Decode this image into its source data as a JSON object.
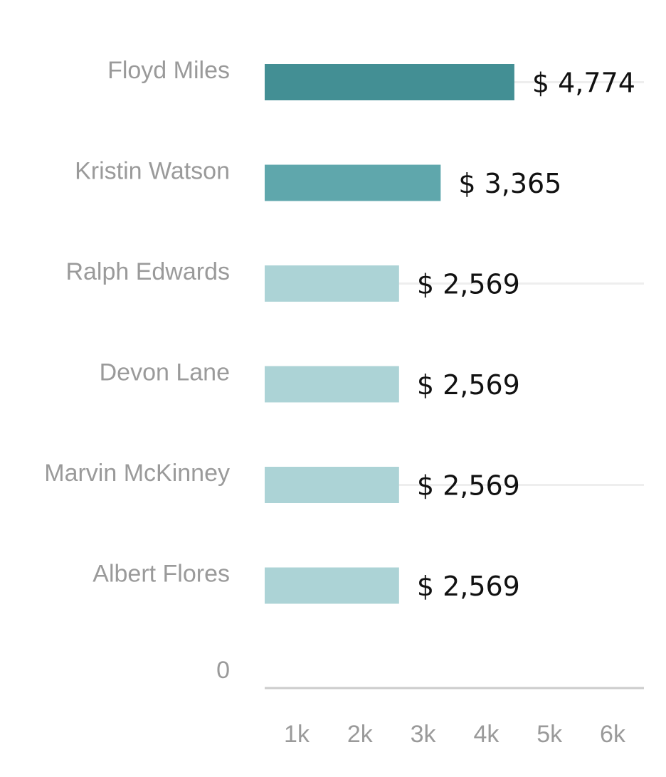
{
  "chart_data": {
    "type": "bar",
    "orientation": "horizontal",
    "categories": [
      "Floyd Miles",
      "Kristin Watson",
      "Ralph Edwards",
      "Devon Lane",
      "Marvin McKinney",
      "Albert Flores"
    ],
    "values": [
      4774,
      3365,
      2569,
      2569,
      2569,
      2569
    ],
    "value_labels": [
      "$ 4,774",
      "$ 3,365",
      "$ 2,569",
      "$ 2,569",
      "$ 2,569",
      "$ 2,569"
    ],
    "zero_label": "0",
    "x_ticks": [
      {
        "value": 1000,
        "label": "1k"
      },
      {
        "value": 2000,
        "label": "2k"
      },
      {
        "value": 3000,
        "label": "3k"
      },
      {
        "value": 4000,
        "label": "4k"
      },
      {
        "value": 5000,
        "label": "5k"
      },
      {
        "value": 6000,
        "label": "6k"
      }
    ],
    "xlim": [
      0,
      6000
    ],
    "bar_colors": [
      "#438f94",
      "#5fa7ac",
      "#acd3d6",
      "#acd3d6",
      "#acd3d6",
      "#acd3d6"
    ],
    "gridline_color": "#eeeeee",
    "axis_color": "#cccccc",
    "grid": true,
    "legend": "none"
  }
}
